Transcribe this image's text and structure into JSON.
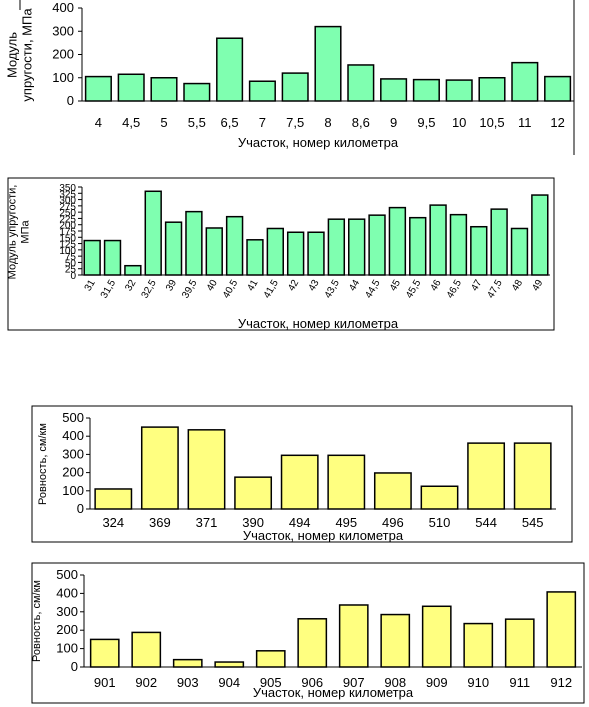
{
  "chart_data": [
    {
      "type": "bar",
      "categories": [
        "4",
        "4,5",
        "5",
        "5,5",
        "6,5",
        "7",
        "7,5",
        "8",
        "8,6",
        "9",
        "9,5",
        "10",
        "10,5",
        "11",
        "12"
      ],
      "values": [
        105,
        115,
        100,
        75,
        270,
        85,
        120,
        320,
        155,
        95,
        92,
        90,
        100,
        165,
        105
      ],
      "ylim": [
        0,
        400
      ],
      "yticks": [
        "0",
        "100",
        "200",
        "300",
        "400"
      ],
      "xlabel": "Участок, номер километра",
      "ylabel": [
        "Модуль",
        "упругости, МПа"
      ],
      "bar_color": "#7FFFB0",
      "grid": false
    },
    {
      "type": "bar",
      "categories": [
        "31",
        "31,5",
        "32",
        "32,5",
        "39",
        "39,5",
        "40",
        "40,5",
        "41",
        "41,5",
        "42",
        "43",
        "43,5",
        "44",
        "44,5",
        "45",
        "45,5",
        "46",
        "46,5",
        "47",
        "47,5",
        "48",
        "49"
      ],
      "values": [
        137,
        137,
        37,
        333,
        210,
        252,
        187,
        232,
        140,
        185,
        170,
        170,
        222,
        222,
        238,
        268,
        228,
        278,
        240,
        192,
        262,
        185,
        318
      ],
      "ylim": [
        0,
        350
      ],
      "yticks": [
        "0",
        "25",
        "50",
        "75",
        "100",
        "125",
        "150",
        "175",
        "200",
        "225",
        "250",
        "275",
        "300",
        "325",
        "350"
      ],
      "xlabel": "Участок, номер километра",
      "ylabel": [
        "Модуль упругости,",
        "МПа"
      ],
      "bar_color": "#7FFFB0",
      "grid": false
    },
    {
      "type": "bar",
      "categories": [
        "324",
        "369",
        "371",
        "390",
        "494",
        "495",
        "496",
        "510",
        "544",
        "545"
      ],
      "values": [
        110,
        450,
        435,
        175,
        295,
        295,
        198,
        125,
        362,
        362
      ],
      "ylim": [
        0,
        500
      ],
      "yticks": [
        "0",
        "100",
        "200",
        "300",
        "400",
        "500"
      ],
      "xlabel": "Участок, номер километра",
      "ylabel": [
        "Ровность, см/км"
      ],
      "bar_color": "#FFFF80",
      "grid": false
    },
    {
      "type": "bar",
      "categories": [
        "901",
        "902",
        "903",
        "904",
        "905",
        "906",
        "907",
        "908",
        "909",
        "910",
        "911",
        "912"
      ],
      "values": [
        150,
        188,
        40,
        27,
        88,
        262,
        337,
        285,
        330,
        236,
        260,
        408
      ],
      "ylim": [
        0,
        500
      ],
      "yticks": [
        "0",
        "100",
        "200",
        "300",
        "400",
        "500"
      ],
      "xlabel": "Участок, номер километра",
      "ylabel": [
        "Ровность, см/км"
      ],
      "bar_color": "#FFFF80",
      "grid": false
    }
  ]
}
